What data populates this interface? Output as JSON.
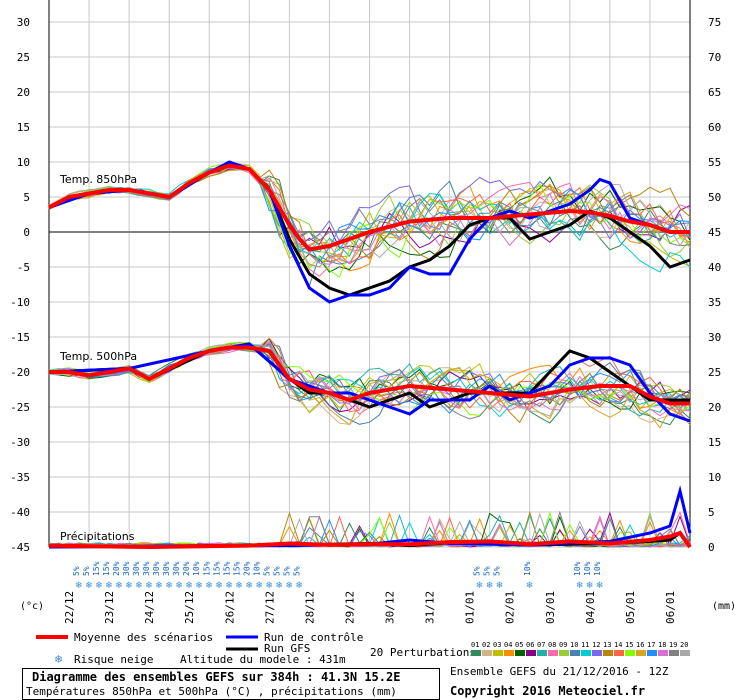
{
  "chart_data": {
    "type": "line",
    "left_axis_label": "(°c)",
    "right_axis_label": "(mm)",
    "ylim_temperature": [
      -45,
      30
    ],
    "ylim_precip_mm": [
      0,
      75
    ],
    "temp_ticks": [
      "30",
      "25",
      "20",
      "15",
      "10",
      "5",
      "0",
      "-5",
      "-10",
      "-15",
      "-20",
      "-25",
      "-30",
      "-35",
      "-40",
      "-45"
    ],
    "precip_ticks": [
      "75",
      "70",
      "65",
      "60",
      "55",
      "50",
      "45",
      "40",
      "35",
      "30",
      "25",
      "20",
      "15",
      "10",
      "5",
      "0"
    ],
    "dates": [
      "22/12",
      "23/12",
      "24/12",
      "25/12",
      "26/12",
      "27/12",
      "28/12",
      "29/12",
      "30/12",
      "31/12",
      "01/01",
      "02/01",
      "03/01",
      "04/01",
      "05/01",
      "06/01"
    ],
    "panel_labels": {
      "t850": "Temp. 850hPa",
      "t500": "Temp. 500hPa",
      "precip": "Précipitations"
    },
    "snow_risk": {
      "labels": [
        "5%",
        "5%",
        "15%",
        "15%",
        "20%",
        "30%",
        "30%",
        "30%",
        "30%",
        "30%",
        "30%",
        "20%",
        "10%",
        "15%",
        "15%",
        "15%",
        "15%",
        "20%",
        "10%",
        "5%",
        "5%",
        "5%",
        "5%",
        "5%",
        "5%",
        "5%",
        "10%",
        "10%",
        "10%",
        "10%"
      ],
      "time_h": [
        18,
        24,
        30,
        36,
        42,
        48,
        54,
        60,
        66,
        72,
        78,
        84,
        90,
        96,
        102,
        108,
        114,
        120,
        126,
        132,
        138,
        144,
        150,
        258,
        264,
        270,
        288,
        318,
        324,
        330
      ]
    },
    "series": [
      {
        "name": "Moyenne des scénarios",
        "color": "#ff0000",
        "t850": [
          [
            0,
            3.5
          ],
          [
            12,
            5
          ],
          [
            24,
            5.5
          ],
          [
            36,
            6
          ],
          [
            48,
            6
          ],
          [
            60,
            5.5
          ],
          [
            72,
            5
          ],
          [
            84,
            7
          ],
          [
            96,
            8.5
          ],
          [
            108,
            9.5
          ],
          [
            120,
            9
          ],
          [
            132,
            6
          ],
          [
            144,
            1
          ],
          [
            150,
            -1
          ],
          [
            156,
            -2.5
          ],
          [
            168,
            -2
          ],
          [
            180,
            -1
          ],
          [
            192,
            0
          ],
          [
            216,
            1.5
          ],
          [
            240,
            2
          ],
          [
            264,
            2
          ],
          [
            288,
            2.5
          ],
          [
            312,
            3
          ],
          [
            324,
            2.8
          ],
          [
            336,
            2.3
          ],
          [
            348,
            1.5
          ],
          [
            360,
            1
          ],
          [
            372,
            0
          ],
          [
            384,
            0
          ]
        ],
        "t500": [
          [
            0,
            -20
          ],
          [
            12,
            -20
          ],
          [
            24,
            -20.5
          ],
          [
            36,
            -20
          ],
          [
            48,
            -19.5
          ],
          [
            60,
            -21
          ],
          [
            72,
            -19.5
          ],
          [
            84,
            -18
          ],
          [
            96,
            -17
          ],
          [
            108,
            -16.5
          ],
          [
            120,
            -16.5
          ],
          [
            132,
            -17
          ],
          [
            144,
            -21
          ],
          [
            156,
            -22.5
          ],
          [
            168,
            -23
          ],
          [
            180,
            -24
          ],
          [
            192,
            -23
          ],
          [
            216,
            -22
          ],
          [
            240,
            -22.5
          ],
          [
            264,
            -23
          ],
          [
            288,
            -23.5
          ],
          [
            312,
            -22.5
          ],
          [
            330,
            -22
          ],
          [
            348,
            -22
          ],
          [
            360,
            -23.5
          ],
          [
            372,
            -24.5
          ],
          [
            384,
            -24.5
          ]
        ],
        "precip": [
          [
            0,
            0.2
          ],
          [
            60,
            0
          ],
          [
            120,
            0.2
          ],
          [
            144,
            0.5
          ],
          [
            168,
            0.3
          ],
          [
            192,
            0.4
          ],
          [
            216,
            0.4
          ],
          [
            240,
            0.7
          ],
          [
            264,
            0.8
          ],
          [
            288,
            0.4
          ],
          [
            312,
            0.8
          ],
          [
            336,
            0.5
          ],
          [
            360,
            1
          ],
          [
            372,
            1.5
          ],
          [
            378,
            2
          ],
          [
            384,
            0
          ]
        ]
      },
      {
        "name": "Run de contrôle",
        "color": "#0000ff",
        "t850": [
          [
            0,
            3.5
          ],
          [
            24,
            5.5
          ],
          [
            48,
            6
          ],
          [
            72,
            5
          ],
          [
            96,
            8.5
          ],
          [
            108,
            10
          ],
          [
            120,
            9
          ],
          [
            132,
            6
          ],
          [
            144,
            -2
          ],
          [
            156,
            -8
          ],
          [
            168,
            -10
          ],
          [
            180,
            -9
          ],
          [
            192,
            -9
          ],
          [
            204,
            -8
          ],
          [
            216,
            -5
          ],
          [
            228,
            -6
          ],
          [
            240,
            -6
          ],
          [
            252,
            -1
          ],
          [
            264,
            2
          ],
          [
            276,
            3
          ],
          [
            288,
            2
          ],
          [
            300,
            3
          ],
          [
            312,
            4
          ],
          [
            324,
            6
          ],
          [
            330,
            7.5
          ],
          [
            336,
            7
          ],
          [
            348,
            2
          ],
          [
            360,
            1
          ],
          [
            372,
            0
          ],
          [
            384,
            0
          ]
        ],
        "t500": [
          [
            0,
            -20
          ],
          [
            48,
            -19.5
          ],
          [
            96,
            -17
          ],
          [
            120,
            -16
          ],
          [
            144,
            -21
          ],
          [
            156,
            -22
          ],
          [
            168,
            -23
          ],
          [
            180,
            -23
          ],
          [
            192,
            -24
          ],
          [
            204,
            -25
          ],
          [
            216,
            -26
          ],
          [
            228,
            -24
          ],
          [
            240,
            -24
          ],
          [
            252,
            -24
          ],
          [
            264,
            -22
          ],
          [
            276,
            -24
          ],
          [
            288,
            -23
          ],
          [
            300,
            -22
          ],
          [
            312,
            -19
          ],
          [
            324,
            -18
          ],
          [
            336,
            -18
          ],
          [
            348,
            -19
          ],
          [
            360,
            -23
          ],
          [
            372,
            -26
          ],
          [
            384,
            -27
          ]
        ],
        "precip": [
          [
            0,
            0
          ],
          [
            144,
            0.2
          ],
          [
            192,
            0.4
          ],
          [
            216,
            1
          ],
          [
            240,
            0.5
          ],
          [
            288,
            0.3
          ],
          [
            336,
            0.8
          ],
          [
            360,
            2
          ],
          [
            372,
            3
          ],
          [
            378,
            8
          ],
          [
            384,
            2
          ]
        ]
      },
      {
        "name": "Run GFS",
        "color": "#000000",
        "t850": [
          [
            0,
            3.5
          ],
          [
            24,
            5.5
          ],
          [
            48,
            6
          ],
          [
            72,
            5
          ],
          [
            96,
            8.5
          ],
          [
            108,
            9.5
          ],
          [
            120,
            9
          ],
          [
            132,
            6
          ],
          [
            144,
            -1
          ],
          [
            156,
            -6
          ],
          [
            168,
            -8
          ],
          [
            180,
            -9
          ],
          [
            192,
            -8
          ],
          [
            204,
            -7
          ],
          [
            216,
            -5
          ],
          [
            228,
            -4
          ],
          [
            240,
            -2
          ],
          [
            252,
            1
          ],
          [
            264,
            2
          ],
          [
            276,
            2
          ],
          [
            288,
            -1
          ],
          [
            300,
            0
          ],
          [
            312,
            1
          ],
          [
            324,
            3
          ],
          [
            336,
            2
          ],
          [
            348,
            0
          ],
          [
            360,
            -2
          ],
          [
            372,
            -5
          ],
          [
            384,
            -4
          ]
        ],
        "t500": [
          [
            0,
            -20
          ],
          [
            48,
            -19.5
          ],
          [
            60,
            -21
          ],
          [
            96,
            -17
          ],
          [
            120,
            -16
          ],
          [
            144,
            -21
          ],
          [
            156,
            -23
          ],
          [
            168,
            -23
          ],
          [
            180,
            -24
          ],
          [
            192,
            -25
          ],
          [
            204,
            -24
          ],
          [
            216,
            -23
          ],
          [
            228,
            -25
          ],
          [
            240,
            -24
          ],
          [
            252,
            -23
          ],
          [
            264,
            -23
          ],
          [
            276,
            -23
          ],
          [
            288,
            -23
          ],
          [
            300,
            -20
          ],
          [
            312,
            -17
          ],
          [
            324,
            -18
          ],
          [
            336,
            -20
          ],
          [
            348,
            -22
          ],
          [
            360,
            -24
          ],
          [
            372,
            -24
          ],
          [
            384,
            -24
          ]
        ],
        "precip": [
          [
            0,
            0
          ],
          [
            144,
            0.3
          ],
          [
            192,
            0.5
          ],
          [
            216,
            0.2
          ],
          [
            240,
            0.6
          ],
          [
            288,
            0.3
          ],
          [
            336,
            0.5
          ],
          [
            360,
            0.8
          ],
          [
            372,
            1
          ],
          [
            378,
            2
          ],
          [
            384,
            0
          ]
        ]
      }
    ],
    "perturbations": {
      "label": "20 Perturbations",
      "ids": [
        "01",
        "02",
        "03",
        "04",
        "05",
        "06",
        "07",
        "08",
        "09",
        "10",
        "11",
        "12",
        "13",
        "14",
        "15",
        "16",
        "17",
        "18",
        "19",
        "20"
      ],
      "colors": [
        "#2e8b57",
        "#d2b48c",
        "#c0c000",
        "#ff8c00",
        "#006400",
        "#8b008b",
        "#20b2aa",
        "#ff69b4",
        "#9acd32",
        "#4682b4",
        "#00ced1",
        "#7b68ee",
        "#b8860b",
        "#ff6347",
        "#7fff00",
        "#daa520",
        "#1e90ff",
        "#da70d6",
        "#808080",
        "#a9a9a9"
      ]
    }
  },
  "legend": {
    "mean": "Moyenne des scénarios",
    "control": "Run de contrôle",
    "gfs": "Run GFS",
    "snow": "Risque neige",
    "altitude": "Altitude du modele : 431m"
  },
  "footer": {
    "title": "Diagramme des ensembles GEFS sur 384h : 41.3N 15.2E",
    "subtitle": "Températures 850hPa et 500hPa (°C) , précipitations (mm)",
    "ensemble": "Ensemble GEFS du 21/12/2016 - 12Z",
    "copyright": "Copyright 2016 Meteociel.fr"
  }
}
